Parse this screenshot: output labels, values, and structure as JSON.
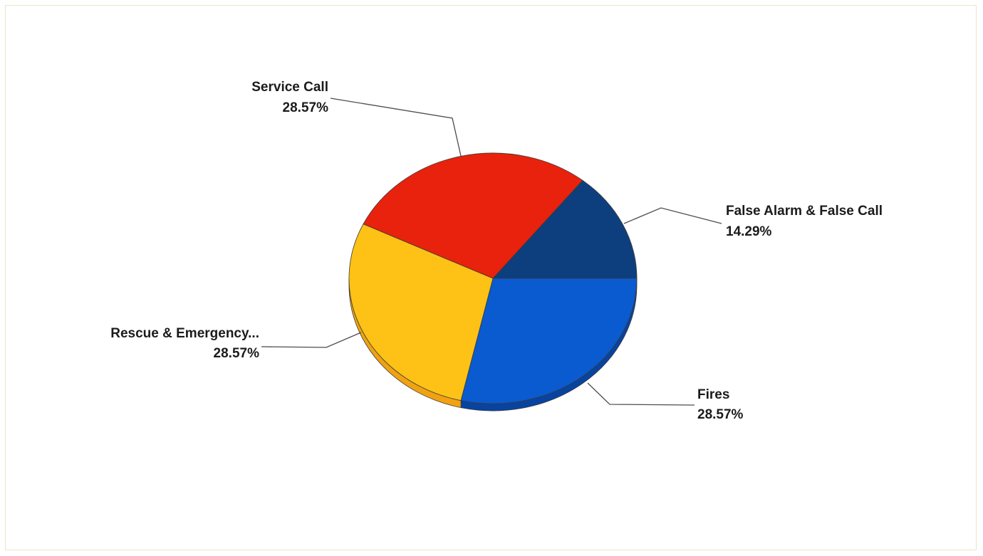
{
  "chart_data": {
    "type": "pie",
    "style": "3d",
    "slices": [
      {
        "label": "False Alarm & False Call",
        "value": 14.29,
        "value_label": "14.29%",
        "color": "#0d3f7e",
        "side_color": "#092e5c"
      },
      {
        "label": "Fires",
        "value": 28.57,
        "value_label": "28.57%",
        "color": "#0a5ad0",
        "side_color": "#0843a0"
      },
      {
        "label": "Rescue & Emergency...",
        "value": 28.57,
        "value_label": "28.57%",
        "color": "#fdc215",
        "side_color": "#f0a212"
      },
      {
        "label": "Service Call",
        "value": 28.57,
        "value_label": "28.57%",
        "color": "#e8220c",
        "side_color": "#b01708"
      }
    ],
    "legend": "none",
    "frame_color": "#e9e4c6"
  }
}
